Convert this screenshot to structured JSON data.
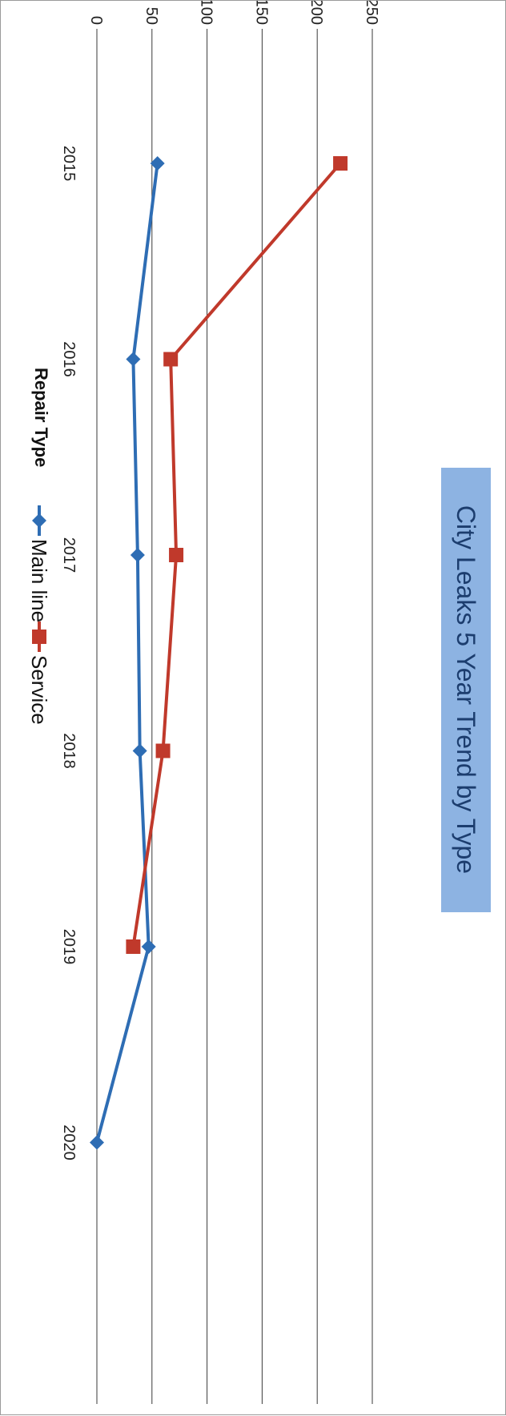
{
  "chart_data": {
    "type": "line",
    "title": "City Leaks 5 Year Trend by Type",
    "categories": [
      "2015",
      "2016",
      "2017",
      "2018",
      "2019",
      "2020"
    ],
    "ylim": [
      0,
      250
    ],
    "yticks": [
      0,
      50,
      100,
      150,
      200,
      250
    ],
    "ytick_labels": [
      "0",
      "50",
      "100",
      "150",
      "200",
      "250"
    ],
    "grid": true,
    "legend_title": "Repair Type",
    "legend_position": "bottom",
    "orientation": "rotated 90° clockwise on the page",
    "series": [
      {
        "name": "Main line",
        "marker": "diamond",
        "color": "#2e6db4",
        "values": [
          55,
          33,
          37,
          39,
          47,
          0
        ]
      },
      {
        "name": "Service",
        "marker": "square",
        "color": "#c0392b",
        "values": [
          221,
          67,
          72,
          60,
          33,
          null
        ]
      }
    ],
    "title_bg_color": "#8db3e2"
  }
}
